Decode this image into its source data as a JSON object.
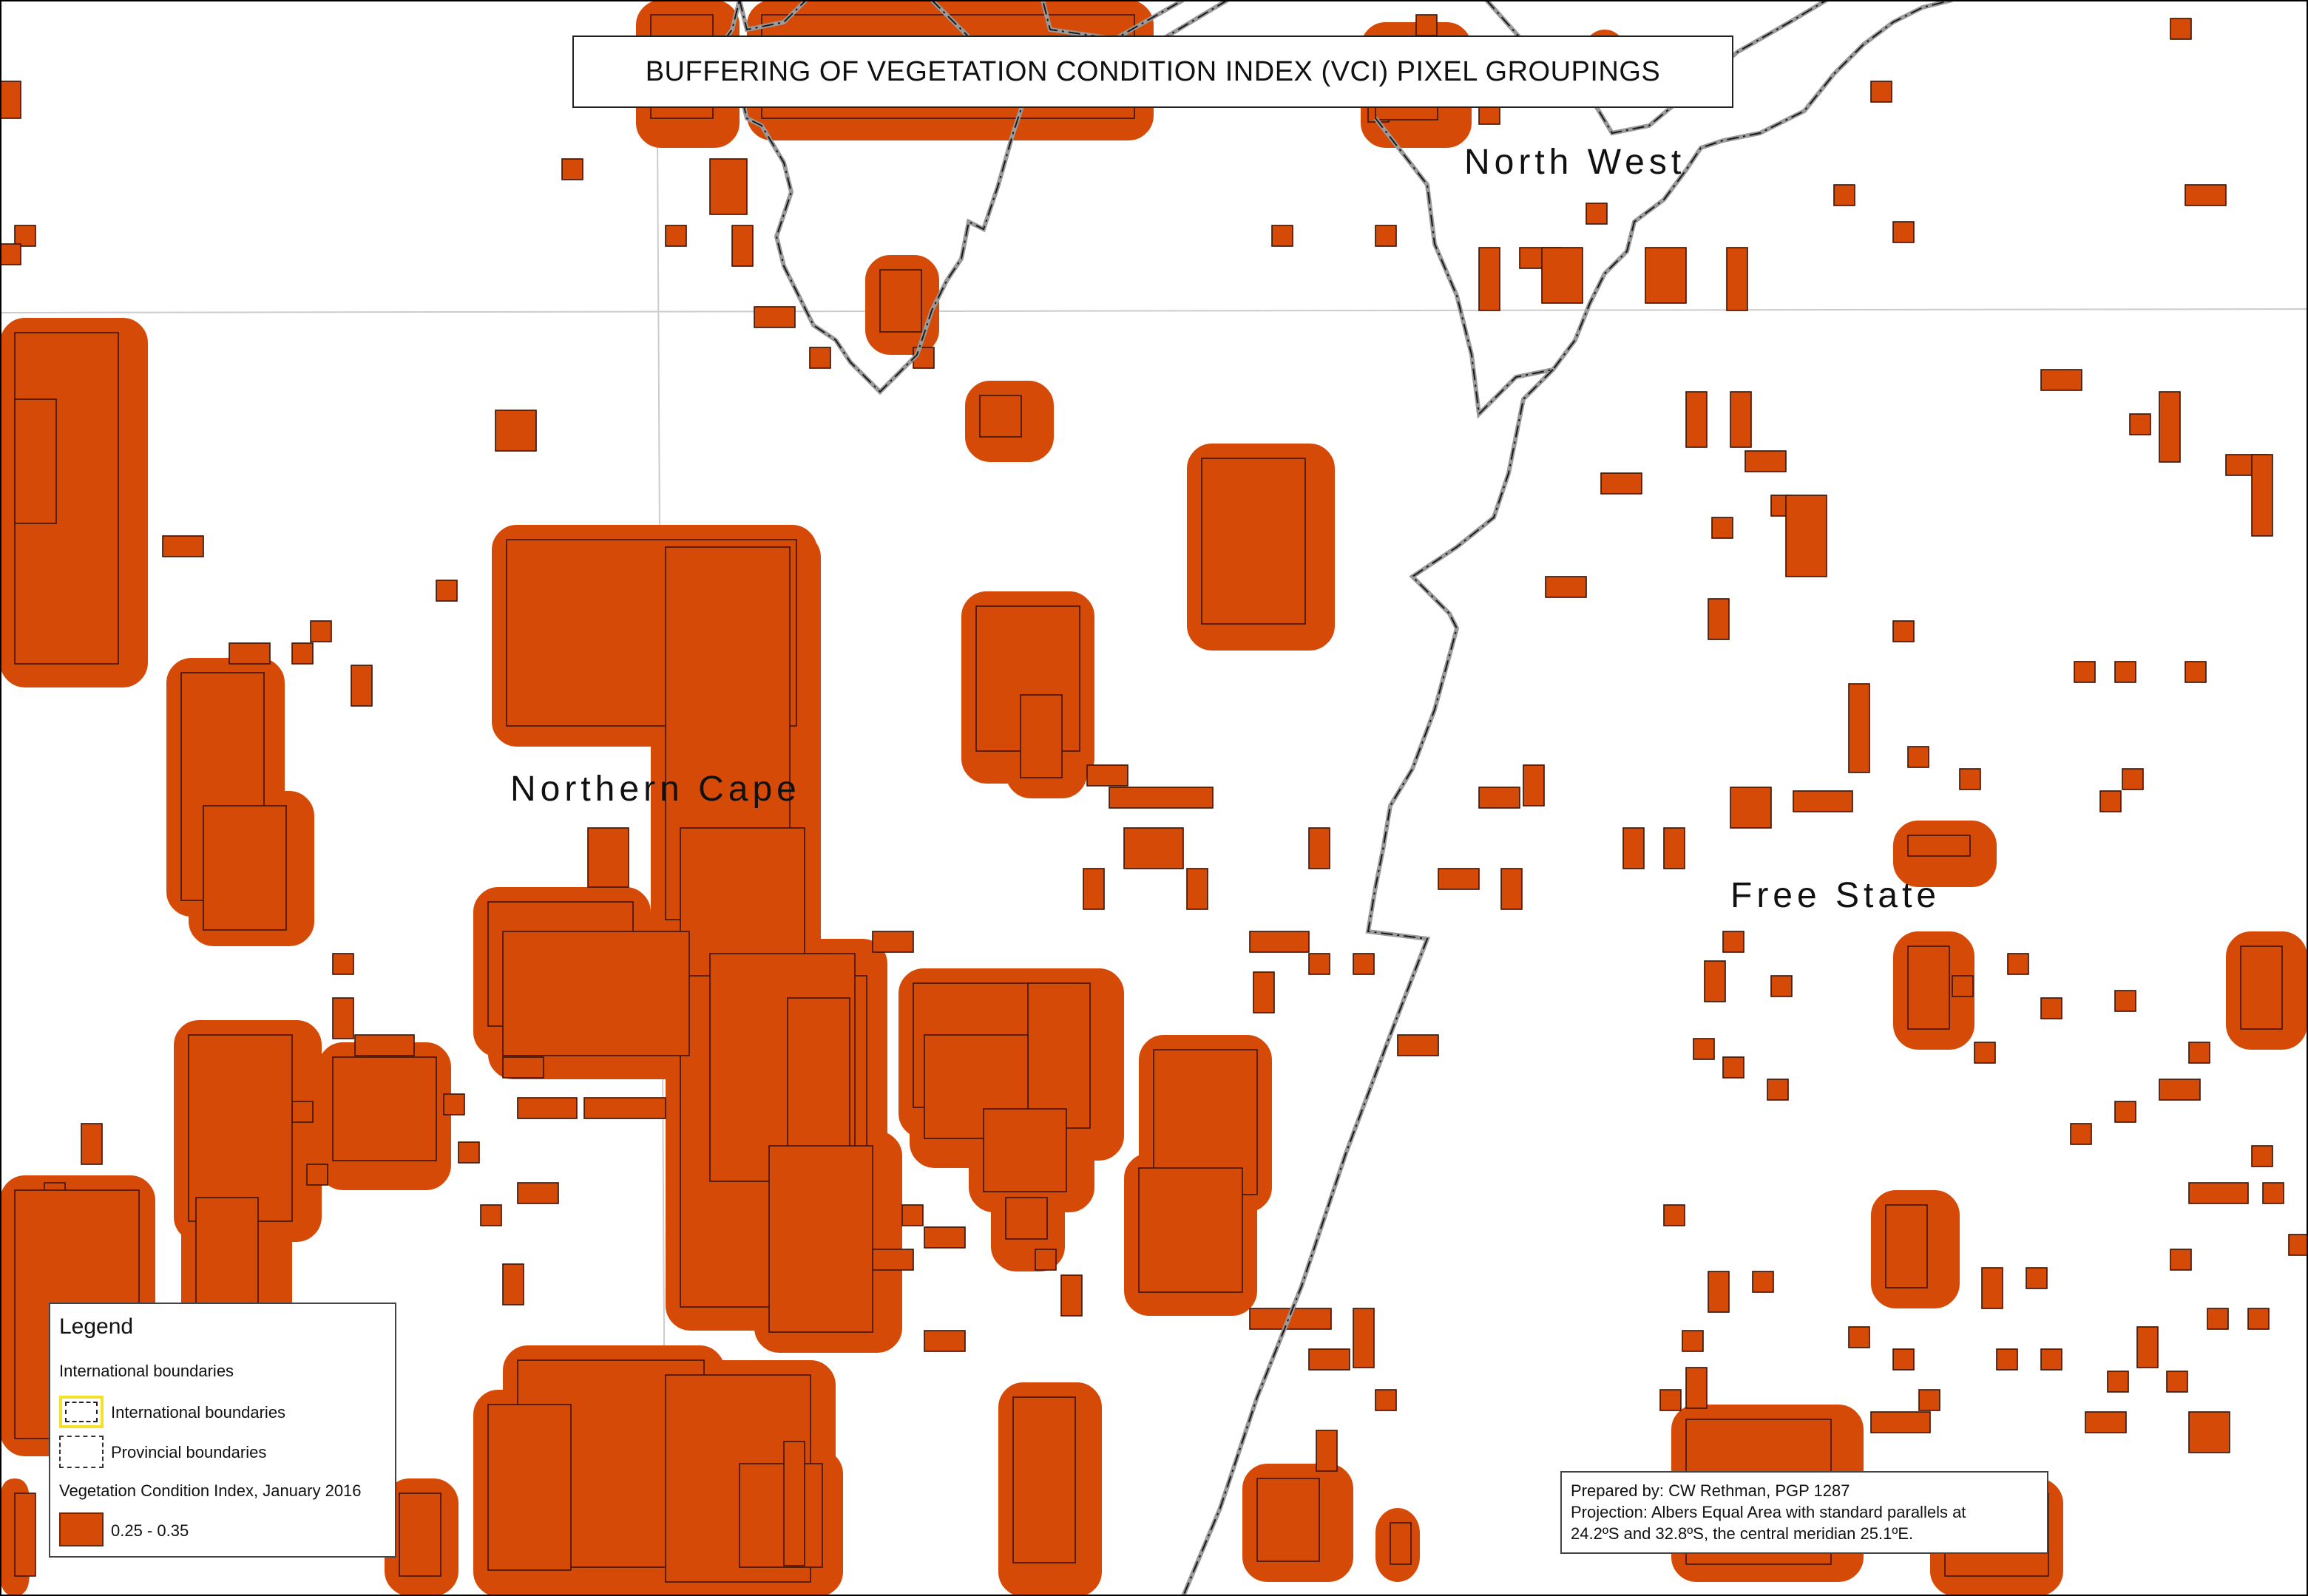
{
  "map": {
    "title": "BUFFERING OF VEGETATION CONDITION INDEX (VCI) PIXEL GROUPINGS",
    "regions": [
      {
        "name": "North West"
      },
      {
        "name": "Northern Cape"
      },
      {
        "name": "Free State"
      }
    ],
    "colors": {
      "vci_fill": "#d64a08",
      "vci_buffer": "#d64a08",
      "pixel_outline": "#3a1505",
      "provincial_boundary": "#222222",
      "international_boundary": "#f5e02a",
      "graticule": "#cccccc"
    }
  },
  "legend": {
    "title": "Legend",
    "section_boundaries": "International boundaries",
    "item_international": "International boundaries",
    "item_provincial": "Provincial boundaries",
    "section_vci": "Vegetation Condition Index, January 2016",
    "item_vci_range": "0.25 - 0.35"
  },
  "credits": {
    "prepared_by": "Prepared by: CW Rethman, PGP 1287",
    "projection_line1": "Projection: Albers Equal Area with standard parallels at",
    "projection_line2": "24.2ºS  and 32.8ºS, the central meridian 25.1ºE."
  }
}
